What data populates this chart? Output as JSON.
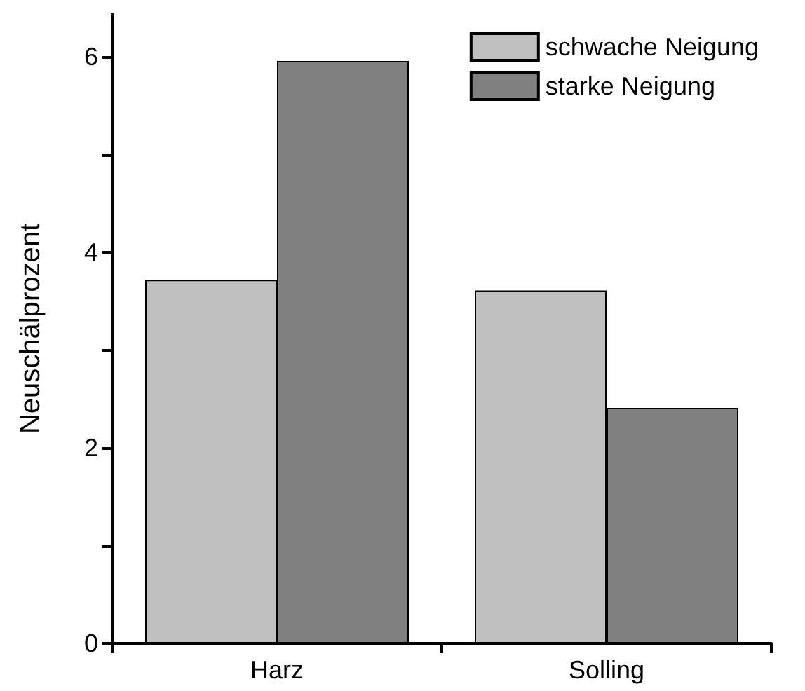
{
  "chart_data": {
    "type": "bar",
    "ylabel": "Neuschälprozent",
    "categories": [
      "Harz",
      "Solling"
    ],
    "series": [
      {
        "name": "schwache Neigung",
        "color": "#c0c0c0",
        "values": [
          3.72,
          3.61
        ]
      },
      {
        "name": "starke Neigung",
        "color": "#808080",
        "values": [
          5.96,
          2.41
        ]
      }
    ],
    "ylim": [
      0,
      6.44
    ],
    "yticks": [
      0,
      {
        "value": 1,
        "label": null
      },
      2,
      {
        "value": 3,
        "label": null
      },
      4,
      {
        "value": 5,
        "label": null
      },
      6
    ],
    "grid": false,
    "legend": "top right"
  }
}
